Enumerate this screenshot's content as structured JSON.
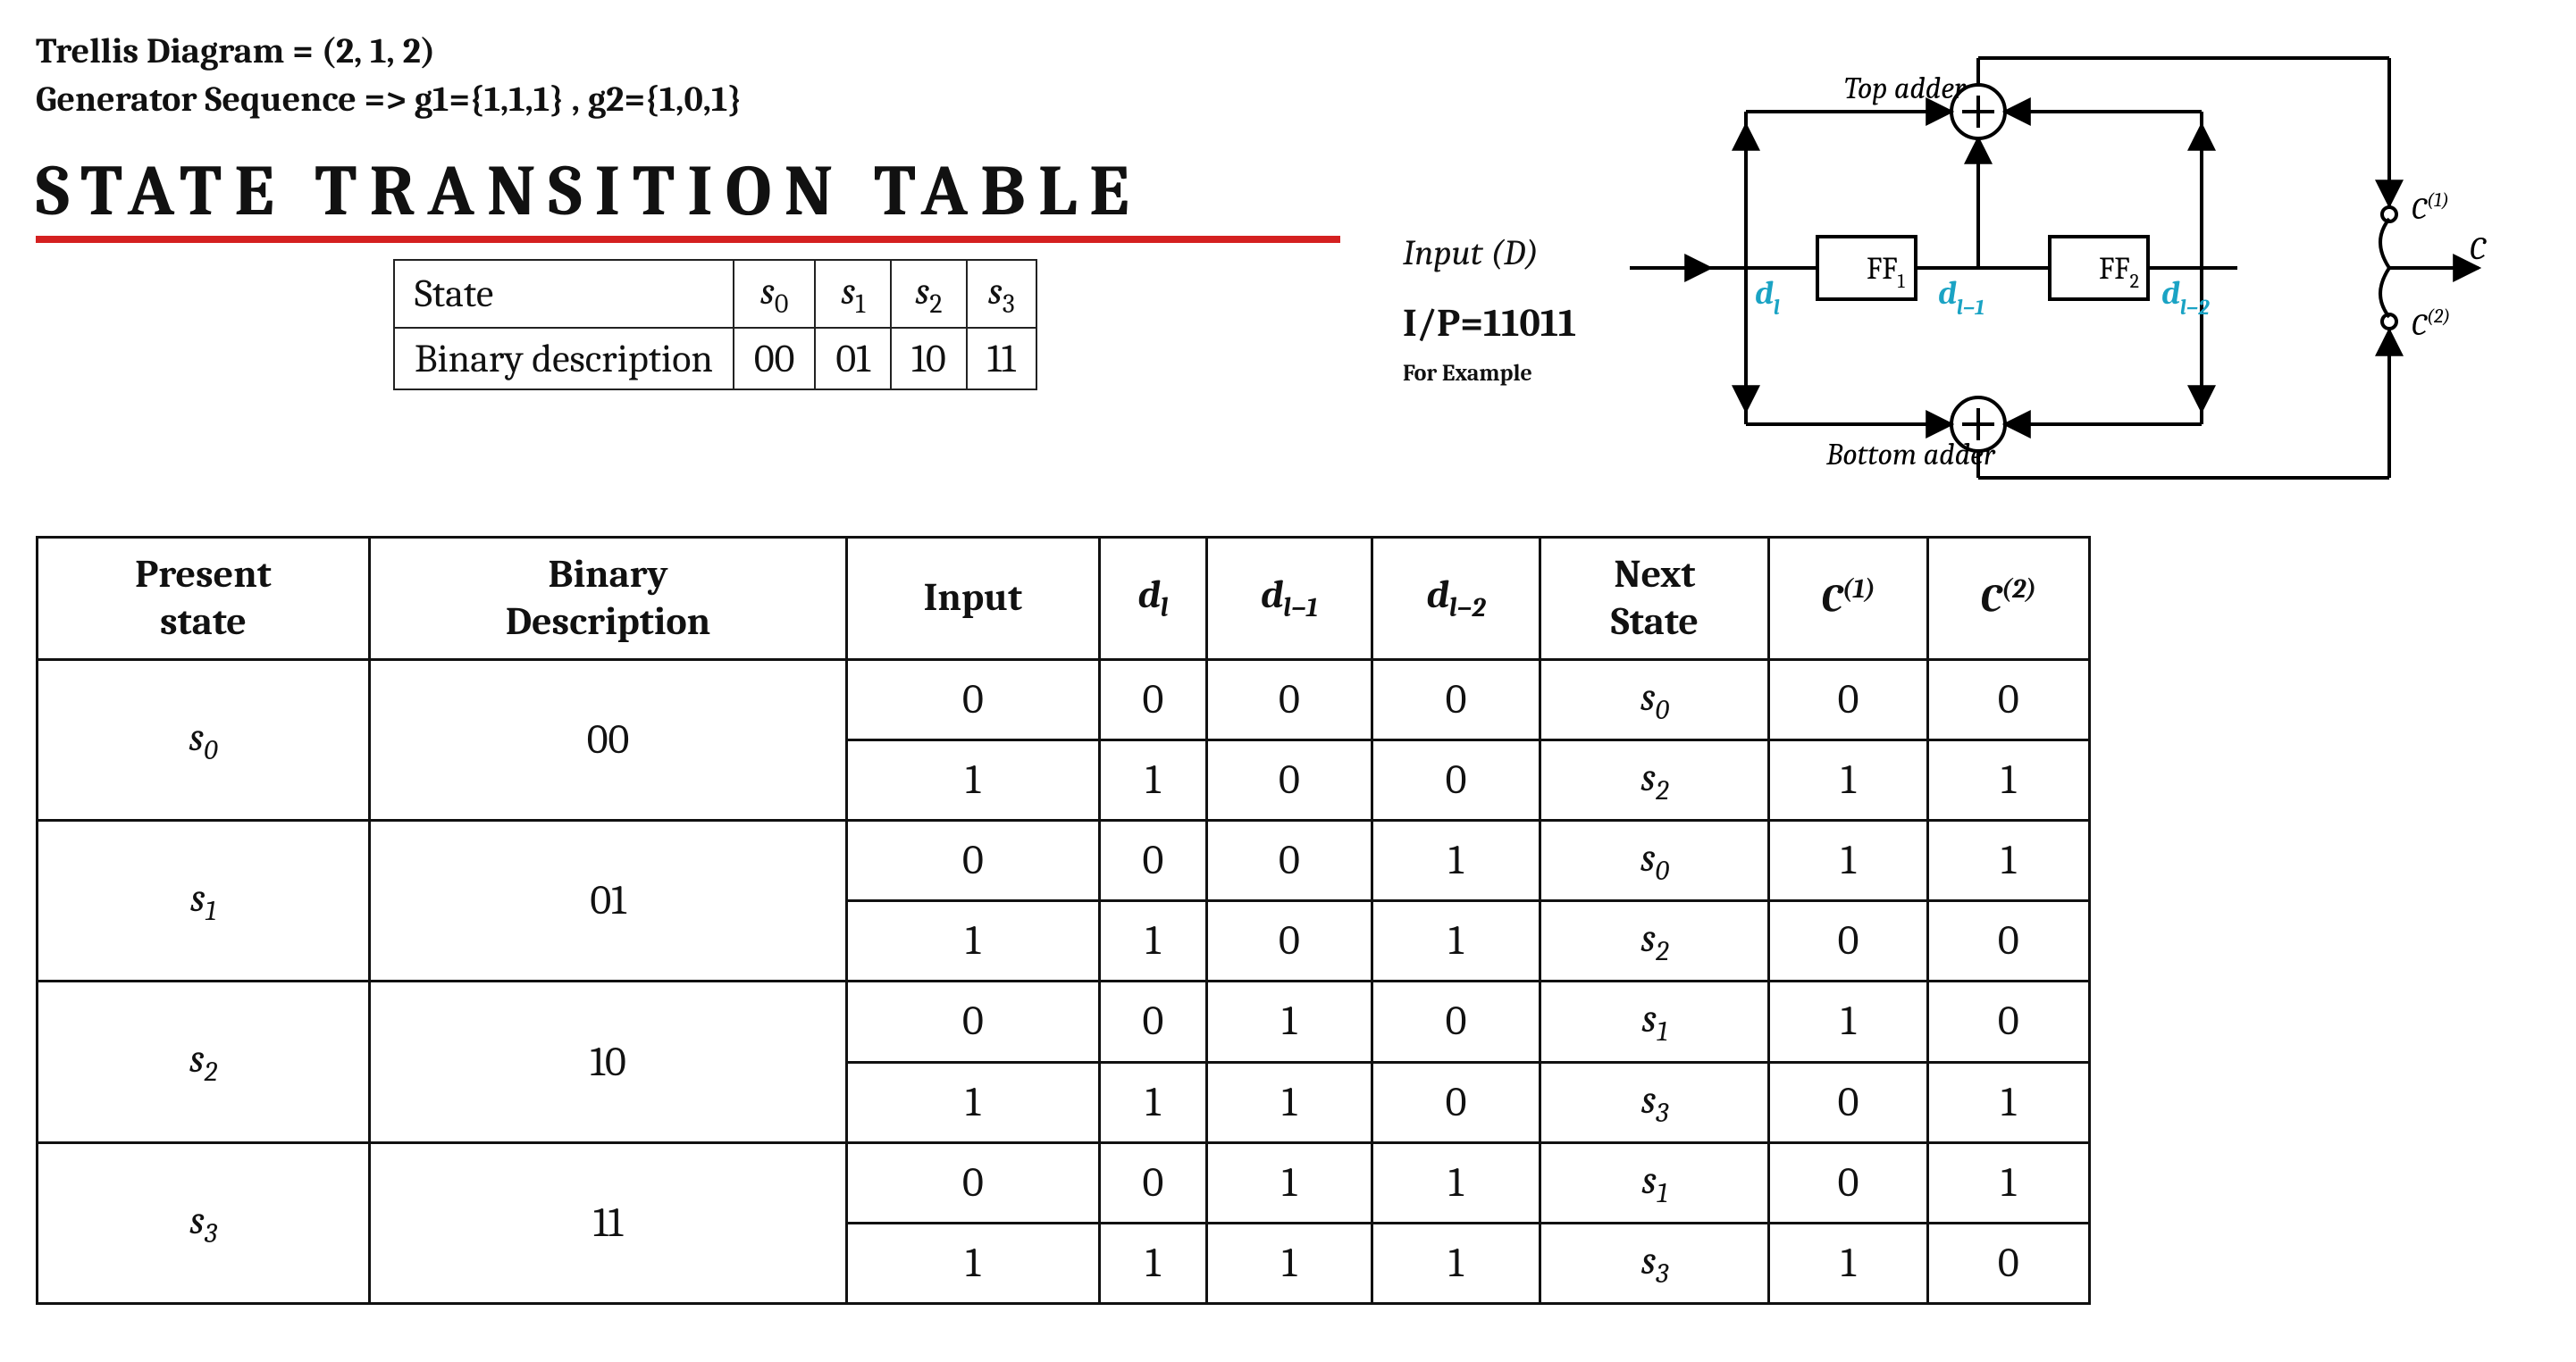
{
  "header": {
    "line1_pre": "Trellis Diagram = ",
    "line1_val": "(2, 1, 2)",
    "line2_pre": "Generator Sequence => ",
    "line2_val": "g1={1,1,1} , g2={1,0,1}",
    "title": "STATE TRANSITION TABLE",
    "underline_color": "#d42020"
  },
  "state_map": {
    "label_state": "State",
    "label_binary": "Binary description",
    "states": [
      "s",
      "s",
      "s",
      "s"
    ],
    "state_subs": [
      "0",
      "1",
      "2",
      "3"
    ],
    "bins": [
      "00",
      "01",
      "10",
      "11"
    ]
  },
  "ip": {
    "input_label": "Input (D)",
    "ip_value": "I/P=11011",
    "for_example": "For Example"
  },
  "circuit": {
    "top_adder": "Top adder",
    "bottom_adder": "Bottom adder",
    "ff1": "FF",
    "ff1_sub": "1",
    "ff2": "FF",
    "ff2_sub": "2",
    "dl": "d",
    "dl_sub": "l",
    "dlm1": "d",
    "dlm1_sub": "l−1",
    "dlm2": "d",
    "dlm2_sub": "l−2",
    "c": "C",
    "c1": "C",
    "c1_sup": "(1)",
    "c2": "C",
    "c2_sup": "(2)",
    "tap_color": "#1aa3c4"
  },
  "table": {
    "headers": {
      "present_state_l1": "Present",
      "present_state_l2": "state",
      "binary_l1": "Binary",
      "binary_l2": "Description",
      "input": "Input",
      "dl": "d",
      "dl_sub": "l",
      "dlm1": "d",
      "dlm1_sub": "l−1",
      "dlm2": "d",
      "dlm2_sub": "l−2",
      "next_l1": "Next",
      "next_l2": "State",
      "c1": "C",
      "c1_sup": "(1)",
      "c2": "C",
      "c2_sup": "(2)"
    },
    "groups": [
      {
        "state": "s",
        "state_sub": "0",
        "bin": "00",
        "rows": [
          {
            "in": "0",
            "dl": "0",
            "dlm1": "0",
            "dlm2": "0",
            "next": "s",
            "next_sub": "0",
            "c1": "0",
            "c2": "0"
          },
          {
            "in": "1",
            "dl": "1",
            "dlm1": "0",
            "dlm2": "0",
            "next": "s",
            "next_sub": "2",
            "c1": "1",
            "c2": "1"
          }
        ]
      },
      {
        "state": "s",
        "state_sub": "1",
        "bin": "01",
        "rows": [
          {
            "in": "0",
            "dl": "0",
            "dlm1": "0",
            "dlm2": "1",
            "next": "s",
            "next_sub": "0",
            "c1": "1",
            "c2": "1"
          },
          {
            "in": "1",
            "dl": "1",
            "dlm1": "0",
            "dlm2": "1",
            "next": "s",
            "next_sub": "2",
            "c1": "0",
            "c2": "0"
          }
        ]
      },
      {
        "state": "s",
        "state_sub": "2",
        "bin": "10",
        "rows": [
          {
            "in": "0",
            "dl": "0",
            "dlm1": "1",
            "dlm2": "0",
            "next": "s",
            "next_sub": "1",
            "c1": "1",
            "c2": "0"
          },
          {
            "in": "1",
            "dl": "1",
            "dlm1": "1",
            "dlm2": "0",
            "next": "s",
            "next_sub": "3",
            "c1": "0",
            "c2": "1"
          }
        ]
      },
      {
        "state": "s",
        "state_sub": "3",
        "bin": "11",
        "rows": [
          {
            "in": "0",
            "dl": "0",
            "dlm1": "1",
            "dlm2": "1",
            "next": "s",
            "next_sub": "1",
            "c1": "0",
            "c2": "1"
          },
          {
            "in": "1",
            "dl": "1",
            "dlm1": "1",
            "dlm2": "1",
            "next": "s",
            "next_sub": "3",
            "c1": "1",
            "c2": "0"
          }
        ]
      }
    ]
  },
  "colors": {
    "border": "#111111",
    "bg": "#ffffff"
  }
}
